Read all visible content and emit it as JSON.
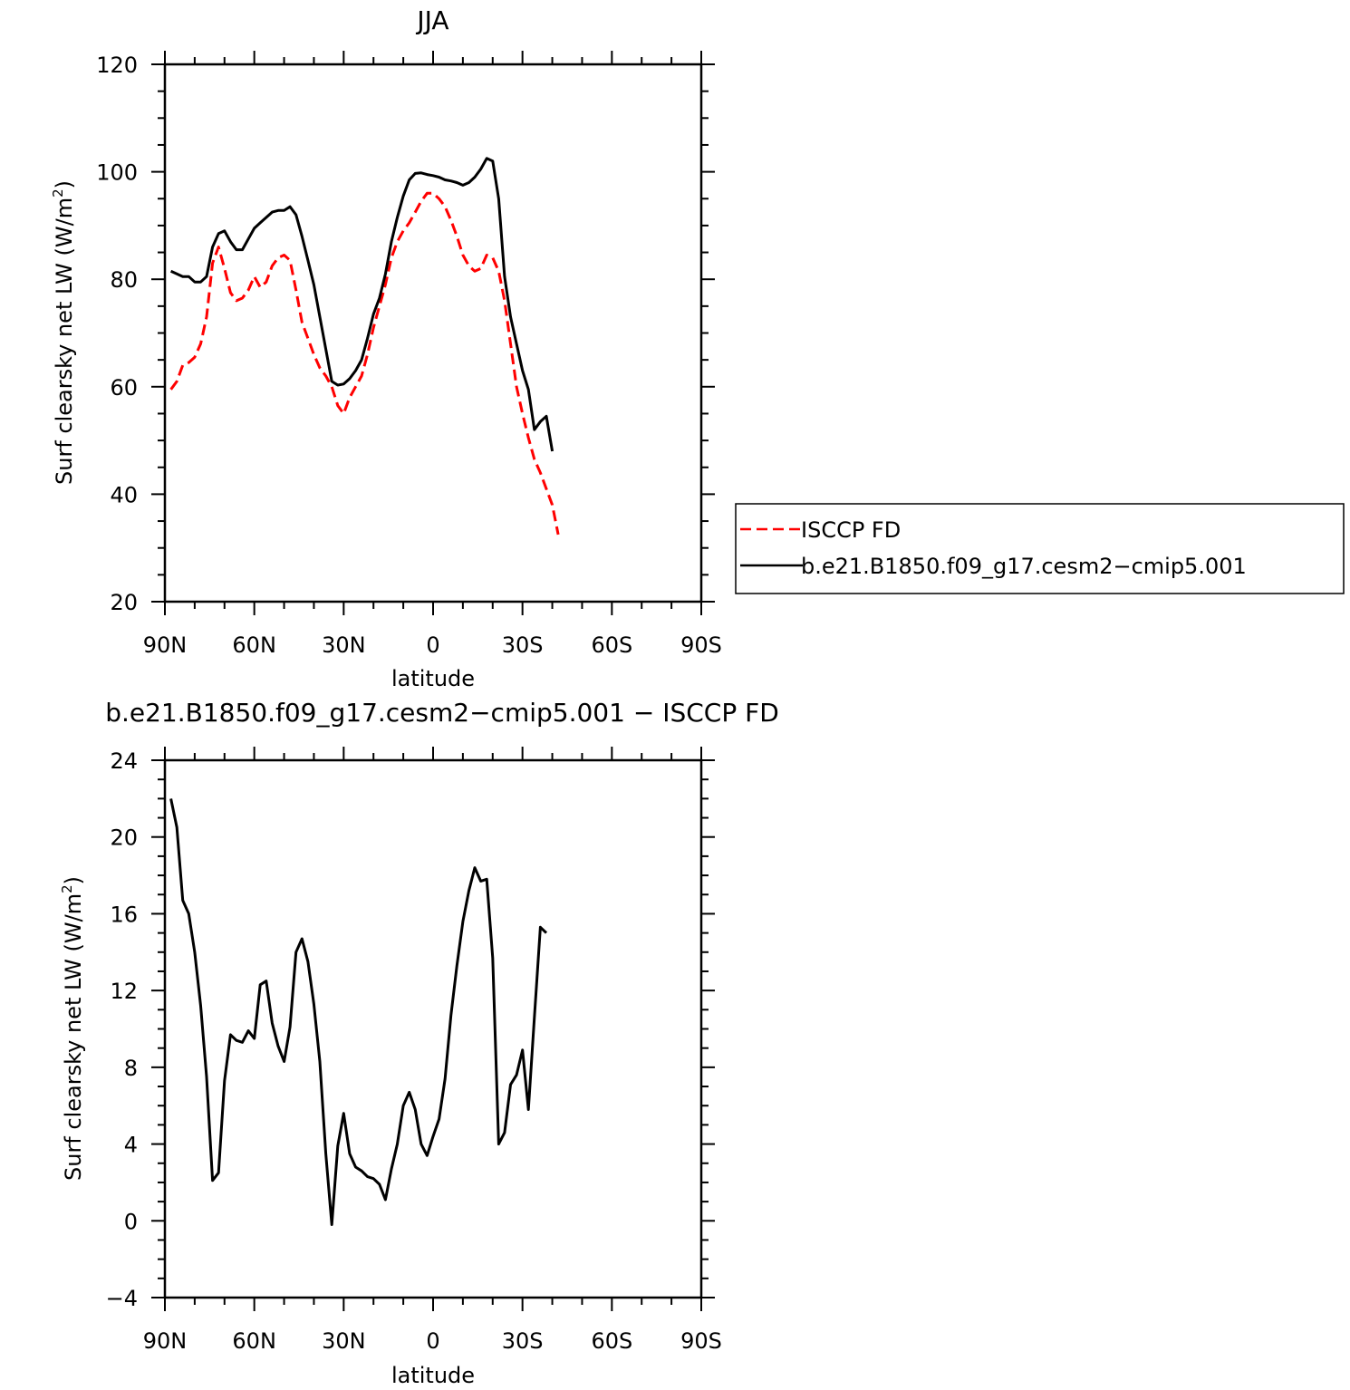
{
  "chart_data": [
    {
      "type": "line",
      "title": "JJA",
      "xlabel": "latitude",
      "ylabel_main": "Surf clearsky net LW (W/m",
      "ylabel_sup": "2",
      "ylabel_close": ")",
      "xlim": [
        90,
        -90
      ],
      "ylim": [
        20,
        120
      ],
      "yticks": [
        20,
        40,
        60,
        80,
        100,
        120
      ],
      "yticks_minor_step": 5,
      "xticks": [
        {
          "value": 90,
          "label": "90N"
        },
        {
          "value": 60,
          "label": "60N"
        },
        {
          "value": 30,
          "label": "30N"
        },
        {
          "value": 0,
          "label": "0"
        },
        {
          "value": -30,
          "label": "30S"
        },
        {
          "value": -60,
          "label": "60S"
        },
        {
          "value": -90,
          "label": "90S"
        }
      ],
      "legend_position": "right",
      "series": [
        {
          "name": "ISCCP FD",
          "color": "#ff0000",
          "dash": "dashed",
          "points": [
            [
              88,
              59.5
            ],
            [
              86,
              61
            ],
            [
              84,
              64
            ],
            [
              82,
              64.5
            ],
            [
              80,
              65.5
            ],
            [
              78,
              68
            ],
            [
              76,
              73
            ],
            [
              74,
              83
            ],
            [
              72,
              86
            ],
            [
              70,
              82
            ],
            [
              68,
              77.5
            ],
            [
              66,
              76
            ],
            [
              64,
              76.5
            ],
            [
              62,
              78
            ],
            [
              60,
              80.5
            ],
            [
              58,
              78.5
            ],
            [
              56,
              79.5
            ],
            [
              54,
              82.5
            ],
            [
              52,
              84
            ],
            [
              50,
              84.5
            ],
            [
              48,
              83.5
            ],
            [
              46,
              78
            ],
            [
              44,
              72
            ],
            [
              42,
              69
            ],
            [
              40,
              66
            ],
            [
              38,
              63.5
            ],
            [
              36,
              62
            ],
            [
              34,
              60
            ],
            [
              32,
              56.5
            ],
            [
              30,
              55
            ],
            [
              28,
              58
            ],
            [
              26,
              60
            ],
            [
              24,
              62
            ],
            [
              22,
              66
            ],
            [
              20,
              71
            ],
            [
              18,
              75
            ],
            [
              16,
              79
            ],
            [
              14,
              84
            ],
            [
              12,
              87
            ],
            [
              10,
              89
            ],
            [
              8,
              90.5
            ],
            [
              6,
              92.5
            ],
            [
              4,
              94.5
            ],
            [
              2,
              96
            ],
            [
              0,
              96
            ],
            [
              -2,
              95
            ],
            [
              -4,
              93.5
            ],
            [
              -6,
              91
            ],
            [
              -8,
              88
            ],
            [
              -10,
              84.5
            ],
            [
              -12,
              82.5
            ],
            [
              -14,
              81.5
            ],
            [
              -16,
              82
            ],
            [
              -18,
              84.5
            ],
            [
              -20,
              84
            ],
            [
              -22,
              81.5
            ],
            [
              -24,
              76
            ],
            [
              -26,
              68
            ],
            [
              -28,
              60
            ],
            [
              -30,
              55
            ],
            [
              -32,
              50.5
            ],
            [
              -34,
              46.5
            ],
            [
              -36,
              44
            ],
            [
              -38,
              41
            ],
            [
              -40,
              38
            ],
            [
              -42,
              32.5
            ]
          ]
        },
        {
          "name": "b.e21.B1850.f09_g17.cesm2−cmip5.001",
          "color": "#000000",
          "dash": "solid",
          "points": [
            [
              88,
              81.5
            ],
            [
              86,
              81
            ],
            [
              84,
              80.5
            ],
            [
              82,
              80.5
            ],
            [
              80,
              79.5
            ],
            [
              78,
              79.5
            ],
            [
              76,
              80.5
            ],
            [
              74,
              86
            ],
            [
              72,
              88.5
            ],
            [
              70,
              89
            ],
            [
              68,
              87
            ],
            [
              66,
              85.5
            ],
            [
              64,
              85.5
            ],
            [
              62,
              87.5
            ],
            [
              60,
              89.5
            ],
            [
              58,
              90.5
            ],
            [
              56,
              91.5
            ],
            [
              54,
              92.5
            ],
            [
              52,
              92.8
            ],
            [
              50,
              92.8
            ],
            [
              48,
              93.5
            ],
            [
              46,
              92
            ],
            [
              44,
              88
            ],
            [
              42,
              83.5
            ],
            [
              40,
              79
            ],
            [
              38,
              73
            ],
            [
              36,
              67
            ],
            [
              34,
              61
            ],
            [
              32,
              60.3
            ],
            [
              30,
              60.5
            ],
            [
              28,
              61.5
            ],
            [
              26,
              63
            ],
            [
              24,
              65
            ],
            [
              22,
              69
            ],
            [
              20,
              73.5
            ],
            [
              18,
              76.5
            ],
            [
              16,
              81
            ],
            [
              14,
              87
            ],
            [
              12,
              91.5
            ],
            [
              10,
              95.5
            ],
            [
              8,
              98.5
            ],
            [
              6,
              99.7
            ],
            [
              4,
              99.8
            ],
            [
              2,
              99.5
            ],
            [
              0,
              99.3
            ],
            [
              -2,
              99
            ],
            [
              -4,
              98.5
            ],
            [
              -6,
              98.3
            ],
            [
              -8,
              98
            ],
            [
              -10,
              97.5
            ],
            [
              -12,
              98
            ],
            [
              -14,
              99
            ],
            [
              -16,
              100.5
            ],
            [
              -18,
              102.5
            ],
            [
              -20,
              102
            ],
            [
              -22,
              95
            ],
            [
              -24,
              80.5
            ],
            [
              -26,
              73
            ],
            [
              -28,
              68
            ],
            [
              -30,
              63
            ],
            [
              -32,
              59.5
            ],
            [
              -34,
              52
            ],
            [
              -36,
              53.5
            ],
            [
              -38,
              54.5
            ],
            [
              -40,
              48
            ]
          ]
        }
      ]
    },
    {
      "type": "line",
      "title": "b.e21.B1850.f09_g17.cesm2−cmip5.001 − ISCCP FD",
      "xlabel": "latitude",
      "ylabel_main": "Surf clearsky net LW (W/m",
      "ylabel_sup": "2",
      "ylabel_close": ")",
      "xlim": [
        90,
        -90
      ],
      "ylim": [
        -4,
        24
      ],
      "yticks": [
        -4,
        0,
        4,
        8,
        12,
        16,
        20,
        24
      ],
      "yticks_minor_step": 1,
      "xticks": [
        {
          "value": 90,
          "label": "90N"
        },
        {
          "value": 60,
          "label": "60N"
        },
        {
          "value": 30,
          "label": "30N"
        },
        {
          "value": 0,
          "label": "0"
        },
        {
          "value": -30,
          "label": "30S"
        },
        {
          "value": -60,
          "label": "60S"
        },
        {
          "value": -90,
          "label": "90S"
        }
      ],
      "series": [
        {
          "color": "#000000",
          "dash": "solid",
          "points": [
            [
              88,
              22
            ],
            [
              86,
              20.5
            ],
            [
              84,
              16.7
            ],
            [
              82,
              16
            ],
            [
              80,
              14
            ],
            [
              78,
              11.2
            ],
            [
              76,
              7.5
            ],
            [
              74,
              2.1
            ],
            [
              72,
              2.5
            ],
            [
              70,
              7.3
            ],
            [
              68,
              9.7
            ],
            [
              66,
              9.4
            ],
            [
              64,
              9.3
            ],
            [
              62,
              9.9
            ],
            [
              60,
              9.5
            ],
            [
              58,
              12.3
            ],
            [
              56,
              12.5
            ],
            [
              54,
              10.3
            ],
            [
              52,
              9.1
            ],
            [
              50,
              8.3
            ],
            [
              48,
              10.1
            ],
            [
              46,
              14
            ],
            [
              44,
              14.7
            ],
            [
              42,
              13.5
            ],
            [
              40,
              11.3
            ],
            [
              38,
              8.3
            ],
            [
              36,
              3.5
            ],
            [
              34,
              -0.2
            ],
            [
              32,
              3.9
            ],
            [
              30,
              5.6
            ],
            [
              28,
              3.5
            ],
            [
              26,
              2.8
            ],
            [
              24,
              2.6
            ],
            [
              22,
              2.3
            ],
            [
              20,
              2.2
            ],
            [
              18,
              1.9
            ],
            [
              16,
              1.1
            ],
            [
              14,
              2.7
            ],
            [
              12,
              4
            ],
            [
              10,
              6
            ],
            [
              8,
              6.7
            ],
            [
              6,
              5.8
            ],
            [
              4,
              4
            ],
            [
              2,
              3.4
            ],
            [
              0,
              4.4
            ],
            [
              -2,
              5.3
            ],
            [
              -4,
              7.4
            ],
            [
              -6,
              10.7
            ],
            [
              -8,
              13.3
            ],
            [
              -10,
              15.6
            ],
            [
              -12,
              17.2
            ],
            [
              -14,
              18.4
            ],
            [
              -16,
              17.7
            ],
            [
              -18,
              17.8
            ],
            [
              -20,
              13.7
            ],
            [
              -22,
              4
            ],
            [
              -24,
              4.6
            ],
            [
              -26,
              7.1
            ],
            [
              -28,
              7.6
            ],
            [
              -30,
              8.9
            ],
            [
              -32,
              5.8
            ],
            [
              -34,
              10.6
            ],
            [
              -36,
              15.3
            ],
            [
              -38,
              15
            ]
          ]
        }
      ]
    }
  ]
}
